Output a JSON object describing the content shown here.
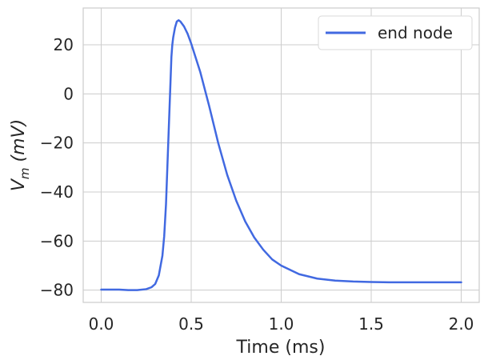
{
  "chart_data": {
    "type": "line",
    "xlabel": "Time (ms)",
    "ylabel": {
      "base": "V",
      "sub": "m",
      "unit": " (mV)"
    },
    "xlim": [
      -0.1,
      2.1
    ],
    "ylim": [
      -85,
      35
    ],
    "xticks": [
      0.0,
      0.5,
      1.0,
      1.5,
      2.0
    ],
    "xtick_labels": [
      "0.0",
      "0.5",
      "1.0",
      "1.5",
      "2.0"
    ],
    "yticks": [
      20,
      0,
      -20,
      -40,
      -60,
      -80
    ],
    "ytick_labels": [
      "20",
      "0",
      "−20",
      "−40",
      "−60",
      "−80"
    ],
    "grid": true,
    "legend_position": "top-right",
    "colors": {
      "line": "#4169e1"
    },
    "series": [
      {
        "name": "end node",
        "x": [
          0.0,
          0.05,
          0.1,
          0.15,
          0.2,
          0.25,
          0.28,
          0.3,
          0.32,
          0.34,
          0.35,
          0.36,
          0.37,
          0.38,
          0.385,
          0.39,
          0.395,
          0.4,
          0.41,
          0.42,
          0.43,
          0.44,
          0.46,
          0.48,
          0.5,
          0.55,
          0.6,
          0.65,
          0.7,
          0.75,
          0.8,
          0.85,
          0.9,
          0.95,
          1.0,
          1.1,
          1.2,
          1.3,
          1.4,
          1.5,
          1.6,
          1.7,
          1.8,
          1.9,
          2.0
        ],
        "y": [
          -79.8,
          -79.8,
          -79.8,
          -80.0,
          -80.0,
          -79.6,
          -78.8,
          -77.5,
          -74.0,
          -66.0,
          -58.0,
          -45.0,
          -25.0,
          -5.0,
          5.0,
          15.0,
          20.0,
          23.0,
          27.0,
          29.5,
          30.0,
          29.5,
          27.5,
          24.5,
          20.5,
          9.0,
          -5.0,
          -20.0,
          -33.0,
          -43.5,
          -52.0,
          -58.5,
          -63.5,
          -67.5,
          -70.0,
          -73.5,
          -75.3,
          -76.1,
          -76.5,
          -76.7,
          -76.8,
          -76.8,
          -76.8,
          -76.8,
          -76.8
        ]
      }
    ]
  }
}
